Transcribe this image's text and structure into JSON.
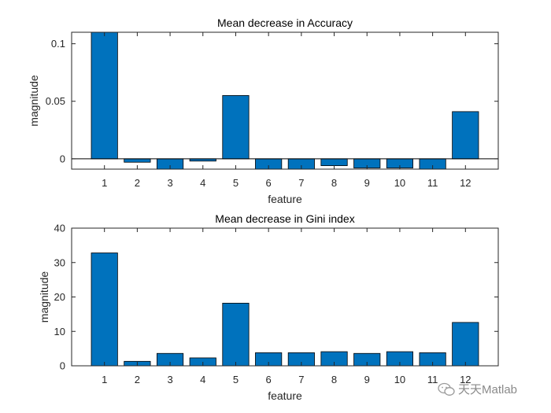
{
  "colors": {
    "bar": "#0072BD",
    "axes": "#262626"
  },
  "watermark": {
    "text": "天天Matlab",
    "icon": "wechat-icon"
  },
  "chart_data": [
    {
      "type": "bar",
      "title": "Mean decrease in Accuracy",
      "xlabel": "feature",
      "ylabel": "magnitude",
      "categories": [
        "1",
        "2",
        "3",
        "4",
        "5",
        "6",
        "7",
        "8",
        "9",
        "10",
        "11",
        "12"
      ],
      "values": [
        0.11,
        -0.003,
        -0.009,
        -0.002,
        0.055,
        -0.009,
        -0.009,
        -0.006,
        -0.008,
        -0.008,
        -0.009,
        0.041
      ],
      "ylim": [
        -0.009,
        0.11
      ],
      "yticks": [
        0,
        0.05,
        0.1
      ],
      "ytick_labels": [
        "0",
        "0.05",
        "0.1"
      ]
    },
    {
      "type": "bar",
      "title": "Mean decrease in Gini index",
      "xlabel": "feature",
      "ylabel": "magnitude",
      "categories": [
        "1",
        "2",
        "3",
        "4",
        "5",
        "6",
        "7",
        "8",
        "9",
        "10",
        "11",
        "12"
      ],
      "values": [
        32.8,
        1.3,
        3.6,
        2.3,
        18.2,
        3.8,
        3.8,
        4.1,
        3.6,
        4.1,
        3.8,
        12.6
      ],
      "ylim": [
        0,
        40
      ],
      "yticks": [
        0,
        10,
        20,
        30,
        40
      ],
      "ytick_labels": [
        "0",
        "10",
        "20",
        "30",
        "40"
      ]
    }
  ]
}
